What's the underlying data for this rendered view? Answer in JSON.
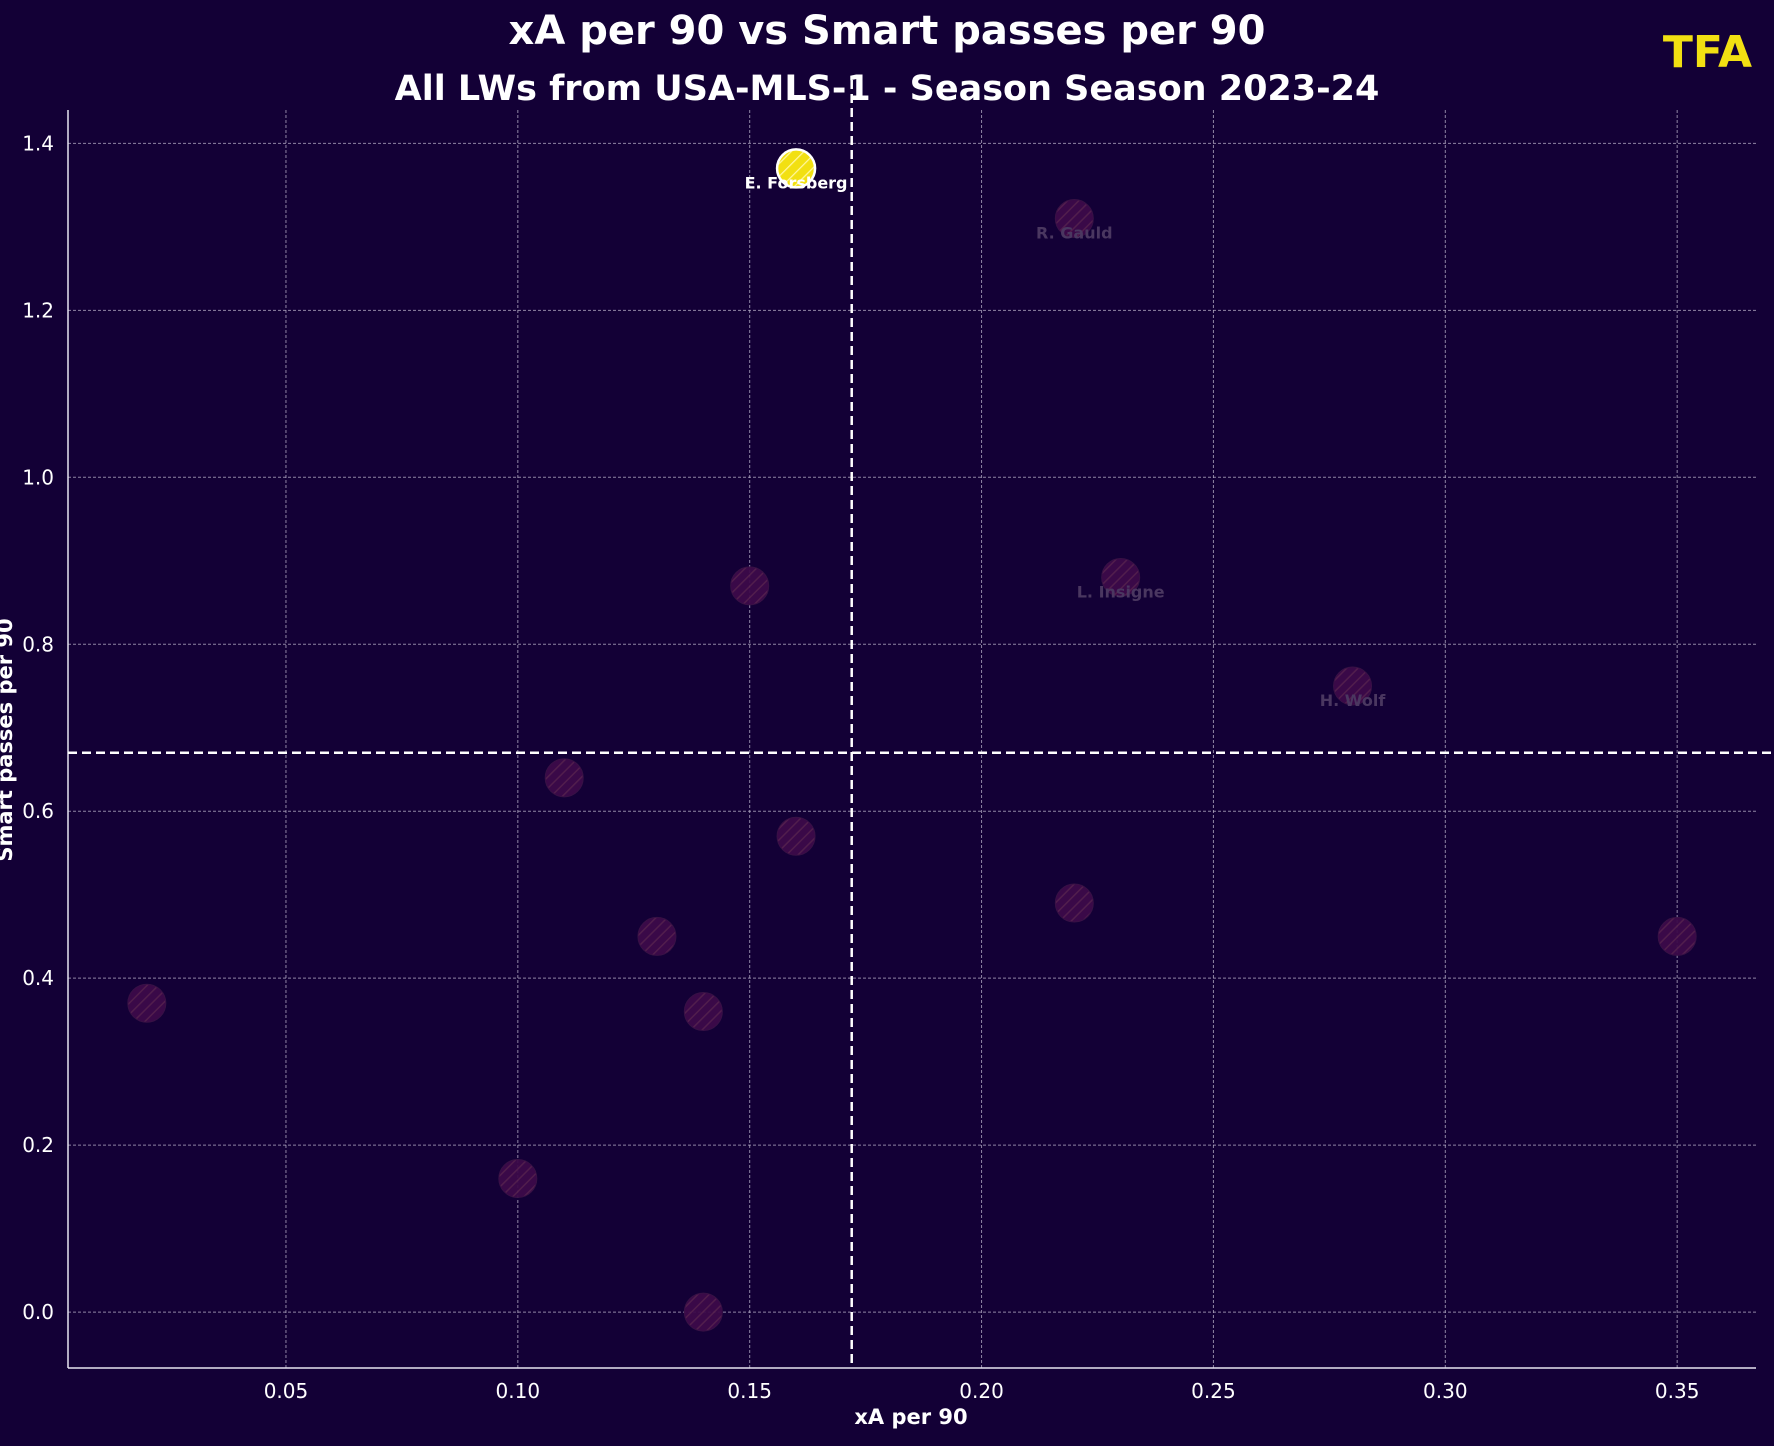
{
  "brand": {
    "logo_text": "TFA",
    "logo_color": "#f2e012"
  },
  "chart_data": {
    "type": "scatter",
    "title": "xA per 90 vs Smart passes per 90",
    "subtitle": "All LWs from USA-MLS-1 - Season Season 2023-24",
    "xlabel": "xA per 90",
    "ylabel": "Smart passes per 90",
    "xlim": [
      0.003,
      0.367
    ],
    "ylim": [
      -0.067,
      1.44
    ],
    "x_ticks": [
      "0.05",
      "0.10",
      "0.15",
      "0.20",
      "0.25",
      "0.30",
      "0.35"
    ],
    "y_ticks": [
      "0.0",
      "0.2",
      "0.4",
      "0.6",
      "0.8",
      "1.0",
      "1.2",
      "1.4"
    ],
    "grid": true,
    "mean_lines": {
      "x": 0.172,
      "y": 0.67
    },
    "colors": {
      "background": "#130036",
      "highlight": "#f2e012",
      "point": "#3d0a4a",
      "label_dim": "#4a3760"
    },
    "points": [
      {
        "x": 0.16,
        "y": 1.37,
        "label": "E. Forsberg",
        "highlight": true
      },
      {
        "x": 0.22,
        "y": 1.31,
        "label": "R. Gauld"
      },
      {
        "x": 0.23,
        "y": 0.88,
        "label": "L. Insigne"
      },
      {
        "x": 0.28,
        "y": 0.75,
        "label": "H. Wolf"
      },
      {
        "x": 0.15,
        "y": 0.87
      },
      {
        "x": 0.11,
        "y": 0.64
      },
      {
        "x": 0.16,
        "y": 0.57
      },
      {
        "x": 0.22,
        "y": 0.49
      },
      {
        "x": 0.35,
        "y": 0.45
      },
      {
        "x": 0.13,
        "y": 0.45
      },
      {
        "x": 0.02,
        "y": 0.37
      },
      {
        "x": 0.14,
        "y": 0.36
      },
      {
        "x": 0.1,
        "y": 0.16
      },
      {
        "x": 0.14,
        "y": 0.0
      }
    ]
  }
}
